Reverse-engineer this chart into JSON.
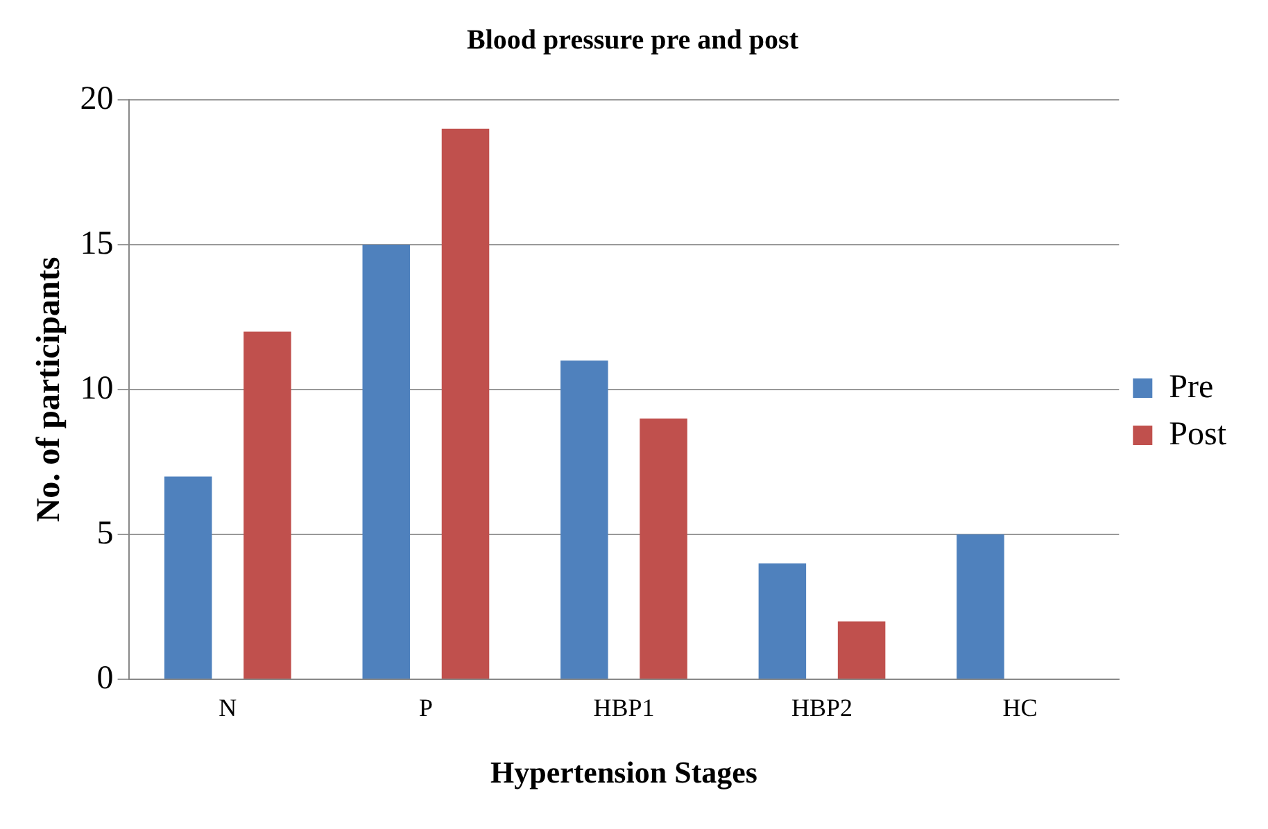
{
  "chart_data": {
    "type": "bar",
    "title": "Blood pressure pre and post",
    "xlabel": "Hypertension Stages",
    "ylabel": "No. of participants",
    "categories": [
      "N",
      "P",
      "HBP1",
      "HBP2",
      "HC"
    ],
    "series": [
      {
        "name": "Pre",
        "color": "#4f81bd",
        "values": [
          7,
          15,
          11,
          4,
          5
        ]
      },
      {
        "name": "Post",
        "color": "#c0504d",
        "values": [
          12,
          19,
          9,
          2,
          0
        ]
      }
    ],
    "ylim": [
      0,
      20
    ],
    "yticks": [
      0,
      5,
      10,
      15,
      20
    ],
    "grid": "y",
    "legend": "right"
  }
}
